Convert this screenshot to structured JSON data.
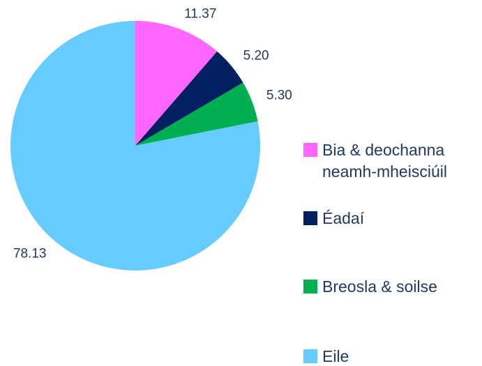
{
  "chart_data": {
    "type": "pie",
    "categories": [
      "Bia & deochanna neamh-mheisciúil",
      "Éadaí",
      "Breosla & soilse",
      "Eile"
    ],
    "values": [
      11.37,
      5.2,
      5.3,
      78.13
    ],
    "value_labels": [
      "11.37",
      "5.20",
      "5.30",
      "78.13"
    ],
    "colors": [
      "#ff66ff",
      "#002060",
      "#00b050",
      "#66ccff"
    ],
    "legend": "right"
  }
}
